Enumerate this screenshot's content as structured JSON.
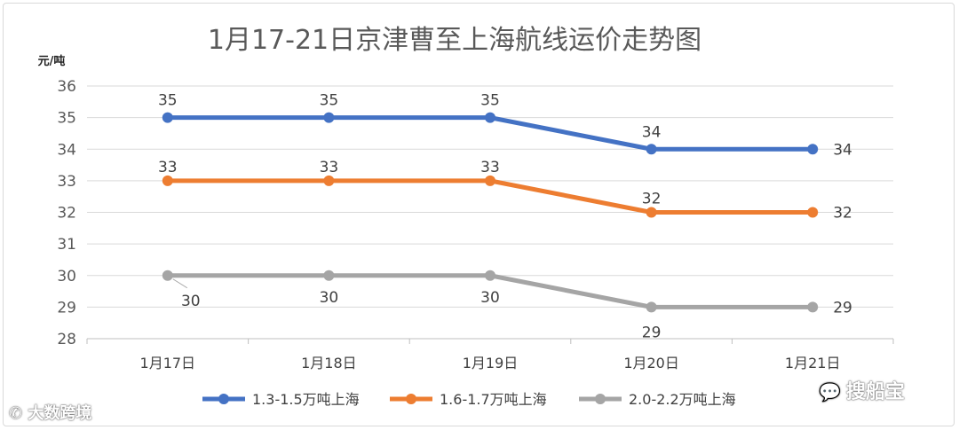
{
  "chart_data": {
    "type": "line",
    "title": "1月17-21日京津曹至上海航线运价走势图",
    "ylabel": "元/吨",
    "xlabel": "",
    "ylim": [
      28,
      36
    ],
    "yticks": [
      28,
      29,
      30,
      31,
      32,
      33,
      34,
      35,
      36
    ],
    "categories": [
      "1月17日",
      "1月18日",
      "1月19日",
      "1月20日",
      "1月21日"
    ],
    "grid": true,
    "legend": "bottom",
    "series": [
      {
        "name": "1.3-1.5万吨上海",
        "color": "#4472c4",
        "values": [
          35,
          35,
          35,
          34,
          34
        ]
      },
      {
        "name": "1.6-1.7万吨上海",
        "color": "#ed7d31",
        "values": [
          33,
          33,
          33,
          32,
          32
        ]
      },
      {
        "name": "2.0-2.2万吨上海",
        "color": "#a5a5a5",
        "values": [
          30,
          30,
          30,
          29,
          29
        ]
      }
    ]
  },
  "watermarks": {
    "left": "大数跨境",
    "right": "搜船宝"
  }
}
